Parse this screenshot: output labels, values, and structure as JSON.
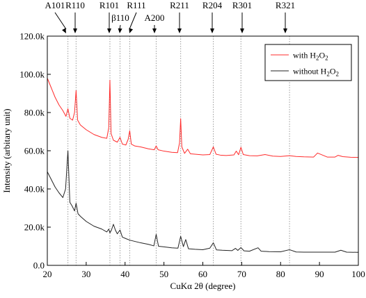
{
  "chart_data": {
    "type": "line",
    "title": "",
    "xlabel": "CuKα 2θ (degree)",
    "ylabel": "Intensity (arbitary unit)",
    "xlim": [
      20,
      100
    ],
    "ylim": [
      0,
      120000
    ],
    "xticks": [
      20,
      30,
      40,
      50,
      60,
      70,
      80,
      90,
      100
    ],
    "yticks": [
      0,
      20000,
      40000,
      60000,
      80000,
      100000,
      120000
    ],
    "ytick_labels": [
      "0.0",
      "20.0k",
      "40.0k",
      "60.0k",
      "80.0k",
      "100.0k",
      "120.0k"
    ],
    "grid": false,
    "legend_position": "top-right",
    "annotations": [
      {
        "label": "A101",
        "x": 25.3
      },
      {
        "label": "R110",
        "x": 27.4
      },
      {
        "label": "R101",
        "x": 36.1
      },
      {
        "label": "β110",
        "x": 38.7
      },
      {
        "label": "R111",
        "x": 41.2
      },
      {
        "label": "A200",
        "x": 48.0
      },
      {
        "label": "R211",
        "x": 54.3
      },
      {
        "label": "R204",
        "x": 62.7
      },
      {
        "label": "R301",
        "x": 69.8
      },
      {
        "label": "R321",
        "x": 82.3
      }
    ],
    "series": [
      {
        "name": "with H2O2",
        "legend_main": "with H",
        "legend_sub": "2",
        "legend_main2": "O",
        "legend_sub2": "2",
        "color": "#ff2b2b",
        "x": [
          20,
          21,
          22,
          23,
          24,
          24.8,
          25.3,
          25.8,
          26.5,
          27.0,
          27.4,
          27.8,
          28.5,
          30,
          32,
          34,
          35.3,
          35.8,
          36.1,
          36.4,
          37.0,
          38.0,
          38.7,
          39.3,
          40.2,
          40.8,
          41.2,
          41.6,
          42.5,
          44,
          46,
          47.5,
          48.0,
          48.5,
          50,
          52,
          53.5,
          54.0,
          54.3,
          54.6,
          55.3,
          56.1,
          56.8,
          58,
          60,
          61.8,
          62.7,
          63.4,
          64.5,
          66,
          68,
          68.6,
          69.2,
          69.8,
          70.4,
          72,
          74,
          76.0,
          78,
          80,
          82.3,
          84,
          86,
          88.5,
          89.5,
          92,
          94,
          94.8,
          96,
          98,
          100
        ],
        "y": [
          98000,
          93000,
          88000,
          84000,
          81000,
          78000,
          82000,
          77000,
          76000,
          80000,
          91500,
          76000,
          73500,
          71000,
          68500,
          67000,
          66500,
          72000,
          97000,
          69000,
          65500,
          64500,
          67000,
          63500,
          63000,
          66000,
          70500,
          63500,
          62500,
          62000,
          61000,
          60500,
          62500,
          60500,
          59800,
          59200,
          59000,
          64000,
          76800,
          62000,
          58600,
          60800,
          58400,
          58200,
          57800,
          58000,
          62000,
          58200,
          57700,
          57500,
          57800,
          59800,
          57900,
          61800,
          58000,
          57400,
          57300,
          58000,
          57200,
          57000,
          57400,
          57000,
          56800,
          56700,
          58800,
          56700,
          56700,
          57600,
          56900,
          56600,
          56500
        ]
      },
      {
        "name": "without H2O2",
        "legend_main": "without H",
        "legend_sub": "2",
        "legend_main2": "O",
        "legend_sub2": "2",
        "color": "#222222",
        "x": [
          20,
          21,
          22,
          23,
          24,
          24.7,
          25.3,
          25.8,
          26.4,
          27.0,
          27.4,
          27.9,
          28.6,
          30,
          32,
          34,
          35.3,
          35.8,
          36.1,
          36.5,
          37.0,
          37.5,
          38.0,
          38.7,
          39.3,
          40.2,
          41.2,
          42.0,
          44,
          46,
          47.4,
          48.0,
          48.6,
          50,
          52,
          53.6,
          54.3,
          55.0,
          55.6,
          56.3,
          58,
          60,
          61.8,
          62.7,
          63.5,
          65,
          67.5,
          68.4,
          69.0,
          69.8,
          70.6,
          72,
          74.2,
          75,
          77,
          80,
          82.3,
          84,
          86,
          88,
          90,
          92,
          94,
          95.5,
          97,
          100
        ],
        "y": [
          49000,
          45000,
          41000,
          38000,
          35500,
          40000,
          60000,
          33000,
          31000,
          28500,
          32500,
          27000,
          25500,
          23000,
          20500,
          19000,
          17500,
          19000,
          17000,
          18500,
          21500,
          18500,
          16500,
          18500,
          14800,
          14000,
          13200,
          12800,
          11800,
          11000,
          10200,
          16200,
          10000,
          9700,
          9200,
          9000,
          15200,
          9800,
          13500,
          8700,
          8400,
          8200,
          9000,
          11800,
          8100,
          7900,
          7700,
          8900,
          7800,
          9300,
          7600,
          7400,
          9200,
          7400,
          7200,
          7100,
          8200,
          7000,
          6900,
          6900,
          6900,
          6900,
          6900,
          7900,
          6900,
          6800
        ]
      }
    ]
  }
}
